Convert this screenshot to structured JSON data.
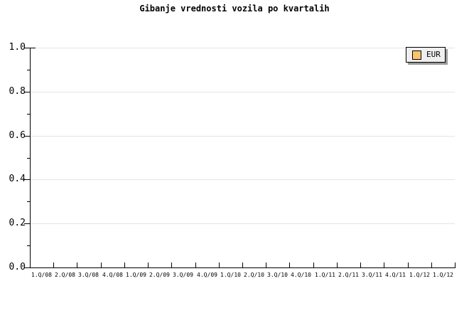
{
  "chart_data": {
    "type": "line",
    "title": "Gibanje vrednosti vozila po kvartalih",
    "categories": [
      "1.Q/08",
      "2.Q/08",
      "3.Q/08",
      "4.Q/08",
      "1.Q/09",
      "2.Q/09",
      "3.Q/09",
      "4.Q/09",
      "1.Q/10",
      "2.Q/10",
      "3.Q/10",
      "4.Q/10",
      "1.Q/11",
      "2.Q/11",
      "3.Q/11",
      "4.Q/11",
      "1.Q/12",
      "1.Q/12"
    ],
    "series": [
      {
        "name": "EUR",
        "color": "#fcc56c",
        "values": []
      }
    ],
    "xlabel": "",
    "ylabel": "",
    "ylim": [
      0,
      1
    ],
    "yticks": [
      "0.0",
      "0.2",
      "0.4",
      "0.6",
      "0.8",
      "1.0"
    ],
    "minor_ytick_interval": 0.1,
    "grid": "horizontal-only",
    "legend_position": "top-right"
  },
  "style": {
    "background": "#ffffff",
    "grid_color": "#e5e5e5",
    "axis_color": "#000000",
    "text_color": "#000000",
    "legend_bg": "#efefef",
    "legend_border": "#000000",
    "legend_shadow": "#9a9a9a"
  }
}
